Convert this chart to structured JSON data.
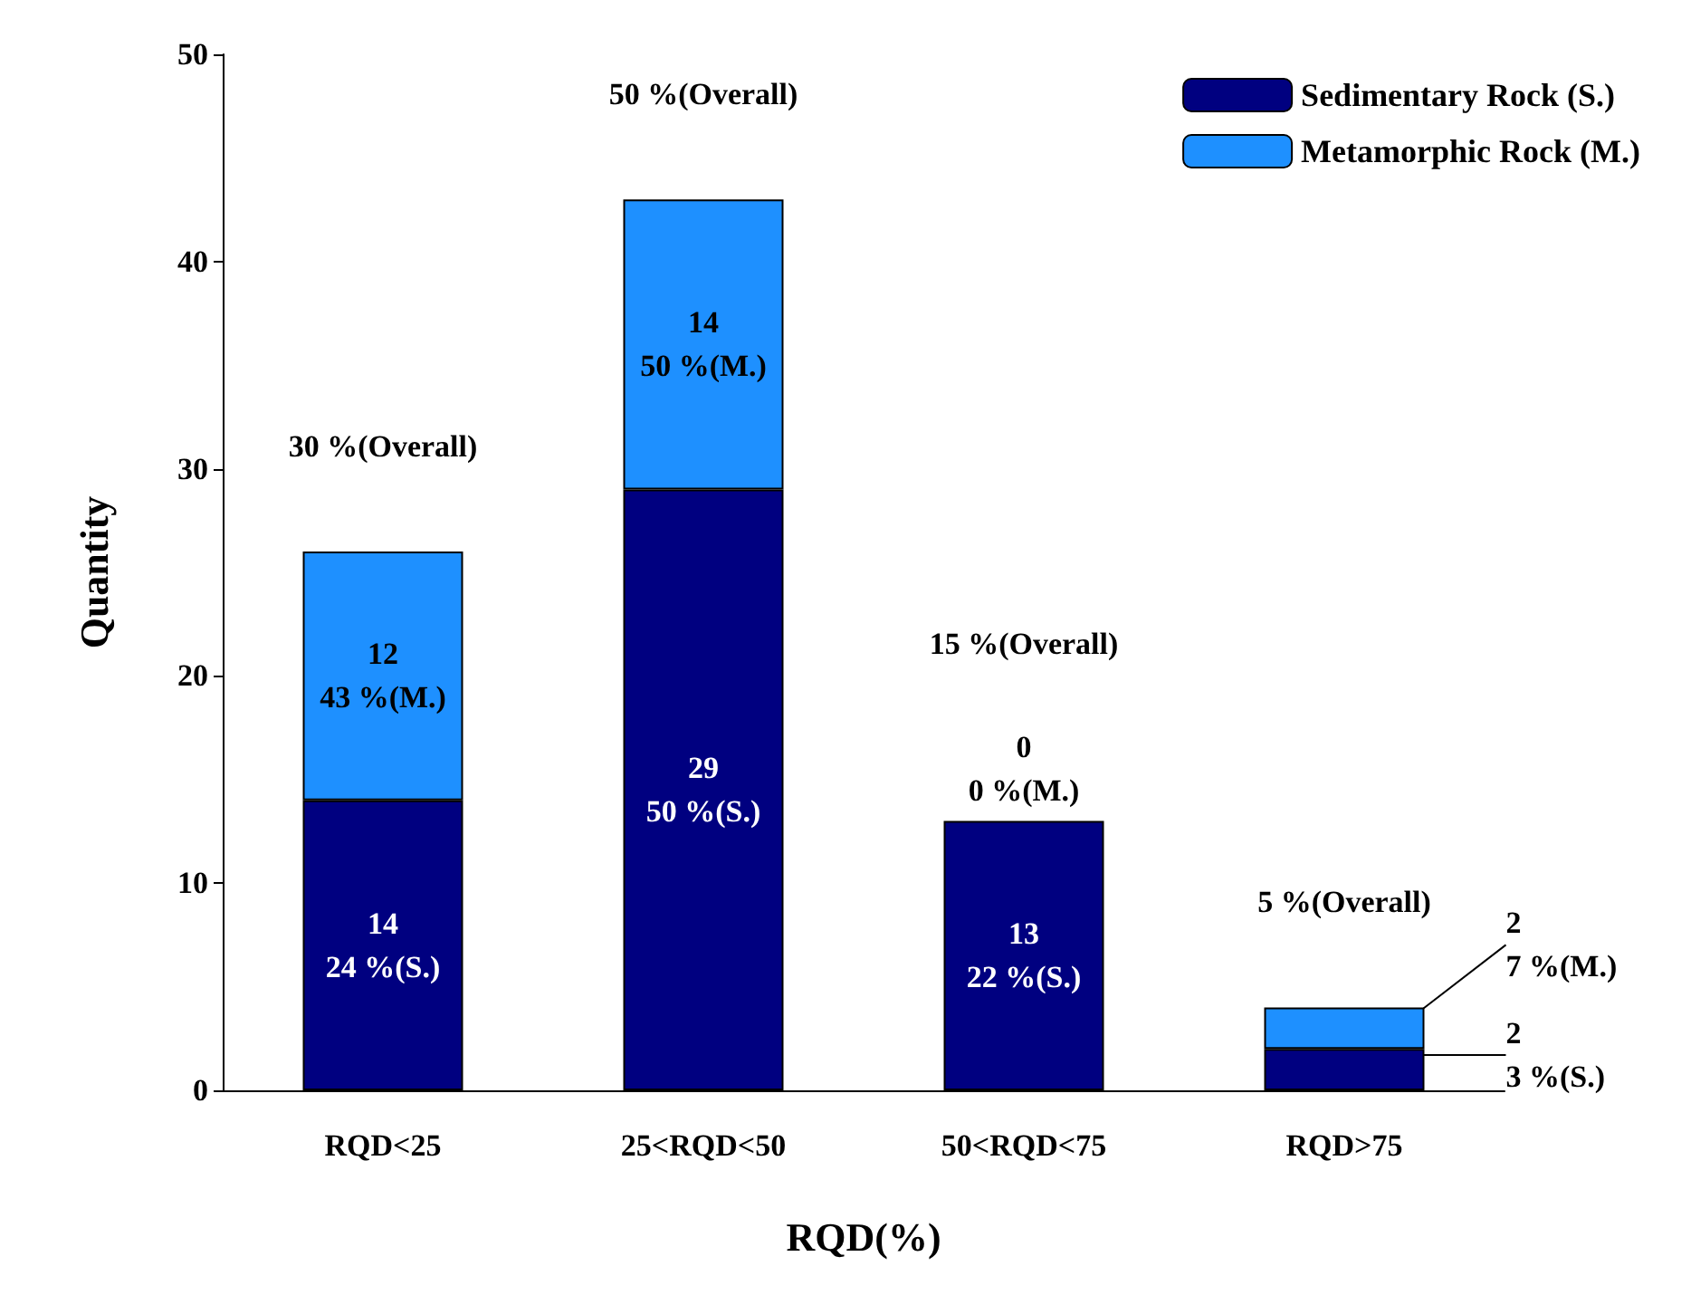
{
  "chart_data": {
    "type": "bar",
    "stacked": true,
    "xlabel": "RQD(%)",
    "ylabel": "Quantity",
    "categories": [
      "RQD<25",
      "25<RQD<50",
      "50<RQD<75",
      "RQD>75"
    ],
    "series": [
      {
        "name": "Sedimentary Rock (S.)",
        "color": "#000080",
        "values": [
          14,
          29,
          13,
          2
        ],
        "value_labels": [
          "14\n24 %(S.)",
          "29\n50 %(S.)",
          "13\n22 %(S.)",
          "2\n3 %(S.)"
        ]
      },
      {
        "name": "Metamorphic Rock (M.)",
        "color": "#1e90ff",
        "values": [
          12,
          14,
          0,
          2
        ],
        "value_labels": [
          "12\n43 %(M.)",
          "14\n50 %(M.)",
          "0\n0 %(M.)",
          "2\n7 %(M.)"
        ]
      }
    ],
    "annotations": [
      "30 %(Overall)",
      "50 %(Overall)",
      "15 %(Overall)",
      "5 %(Overall)"
    ],
    "ylim": [
      0,
      50
    ],
    "yticks": [
      0,
      10,
      20,
      30,
      40,
      50
    ],
    "grid": false,
    "legend": "top right"
  }
}
